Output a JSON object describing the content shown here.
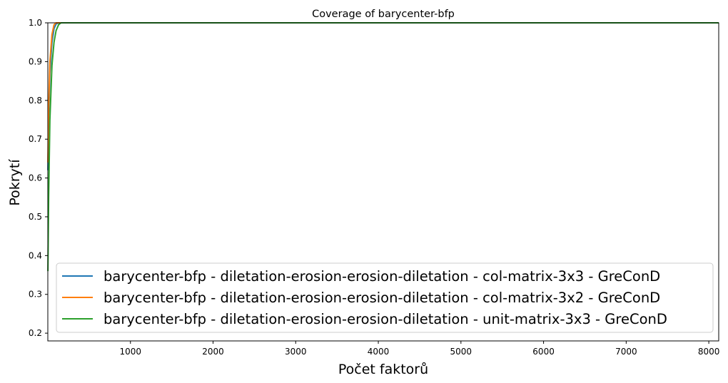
{
  "chart_data": {
    "type": "line",
    "title": "Coverage of barycenter-bfp",
    "xlabel": "Počet faktorů",
    "ylabel": "Pokrytí",
    "xlim": [
      0,
      8120
    ],
    "ylim": [
      0.18,
      1.0
    ],
    "x_ticks": [
      1000,
      2000,
      3000,
      4000,
      5000,
      6000,
      7000,
      8000
    ],
    "x_tick_labels": [
      "1000",
      "2000",
      "3000",
      "4000",
      "5000",
      "6000",
      "7000",
      "8000"
    ],
    "y_ticks": [
      0.2,
      0.3,
      0.4,
      0.5,
      0.6,
      0.7,
      0.8,
      0.9,
      1.0
    ],
    "y_tick_labels": [
      "0.2",
      "0.3",
      "0.4",
      "0.5",
      "0.6",
      "0.7",
      "0.8",
      "0.9",
      "1.0"
    ],
    "grid": false,
    "legend_position": "lower-center",
    "series": [
      {
        "name": "barycenter-bfp - diletation-erosion-erosion-diletation - col-matrix-3x3 - GreConD",
        "color": "#1f77b4",
        "x": [
          1,
          10,
          25,
          50,
          75,
          100,
          130,
          8120
        ],
        "y": [
          0.62,
          0.75,
          0.87,
          0.95,
          0.985,
          0.997,
          1.0,
          1.0
        ]
      },
      {
        "name": "barycenter-bfp - diletation-erosion-erosion-diletation - col-matrix-3x2 - GreConD",
        "color": "#ff7f0e",
        "x": [
          1,
          10,
          25,
          50,
          75,
          100,
          8120
        ],
        "y": [
          0.64,
          0.78,
          0.9,
          0.97,
          0.995,
          1.0,
          1.0
        ]
      },
      {
        "name": "barycenter-bfp - diletation-erosion-erosion-diletation - unit-matrix-3x3 - GreConD",
        "color": "#2ca02c",
        "x": [
          1,
          10,
          25,
          50,
          75,
          100,
          130,
          160,
          8120
        ],
        "y": [
          0.36,
          0.55,
          0.75,
          0.89,
          0.95,
          0.98,
          0.995,
          1.0,
          1.0
        ]
      }
    ]
  }
}
